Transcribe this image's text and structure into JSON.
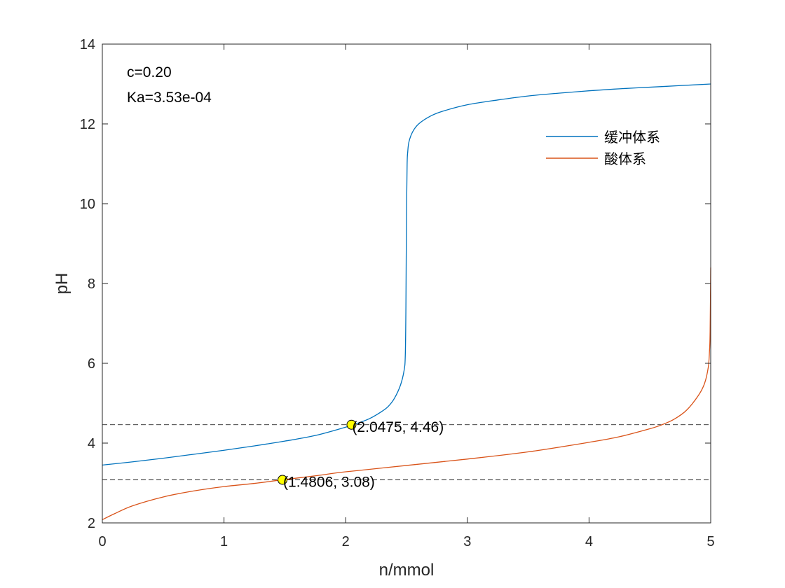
{
  "chart_data": {
    "type": "line",
    "xlabel": "n/mmol",
    "ylabel": "pH",
    "xlim": [
      0,
      5
    ],
    "ylim": [
      2,
      14
    ],
    "xticks": [
      "0",
      "1",
      "2",
      "3",
      "4",
      "5"
    ],
    "yticks": [
      "2",
      "4",
      "6",
      "8",
      "10",
      "12",
      "14"
    ],
    "grid": false,
    "legend_position": "top-right",
    "annotations": [
      "c=0.20",
      "Ka=3.53e-04"
    ],
    "series": [
      {
        "name": "缓冲体系",
        "color": "#0072BD",
        "x": [
          0,
          0.25,
          0.5,
          0.75,
          1.0,
          1.25,
          1.5,
          1.75,
          2.0,
          2.0475,
          2.1,
          2.2,
          2.3,
          2.35,
          2.4,
          2.45,
          2.48,
          2.49,
          2.495,
          2.5,
          2.505,
          2.51,
          2.52,
          2.55,
          2.6,
          2.7,
          2.8,
          3.0,
          3.25,
          3.5,
          3.75,
          4.0,
          4.25,
          4.5,
          4.75,
          5.0
        ],
        "y": [
          3.45,
          3.53,
          3.62,
          3.72,
          3.82,
          3.93,
          4.05,
          4.19,
          4.4,
          4.46,
          4.5,
          4.62,
          4.8,
          4.92,
          5.12,
          5.45,
          5.82,
          6.2,
          7.4,
          9.8,
          11.0,
          11.3,
          11.55,
          11.8,
          12.0,
          12.2,
          12.32,
          12.48,
          12.6,
          12.7,
          12.77,
          12.83,
          12.88,
          12.92,
          12.96,
          13.0
        ]
      },
      {
        "name": "酸体系",
        "color": "#D95319",
        "x": [
          0,
          0.1,
          0.25,
          0.5,
          0.75,
          1.0,
          1.25,
          1.4806,
          1.75,
          2.0,
          2.5,
          3.0,
          3.5,
          4.0,
          4.25,
          4.5,
          4.6,
          4.7,
          4.8,
          4.9,
          4.95,
          4.98,
          4.99,
          4.995,
          5.0
        ],
        "y": [
          2.08,
          2.23,
          2.43,
          2.65,
          2.8,
          2.91,
          2.99,
          3.08,
          3.18,
          3.28,
          3.44,
          3.6,
          3.78,
          4.02,
          4.16,
          4.36,
          4.46,
          4.6,
          4.82,
          5.2,
          5.5,
          5.9,
          6.3,
          6.8,
          8.4
        ]
      }
    ],
    "reference_lines": [
      {
        "type": "horizontal",
        "y": 4.46,
        "style": "dashed",
        "color": "#000000"
      },
      {
        "type": "horizontal",
        "y": 3.08,
        "style": "dashed",
        "color": "#000000"
      }
    ],
    "marked_points": [
      {
        "x": 2.0475,
        "y": 4.46,
        "label": "(2.0475, 4.46)",
        "color": "#FFFF00"
      },
      {
        "x": 1.4806,
        "y": 3.08,
        "label": "(1.4806, 3.08)",
        "color": "#FFFF00"
      }
    ]
  }
}
